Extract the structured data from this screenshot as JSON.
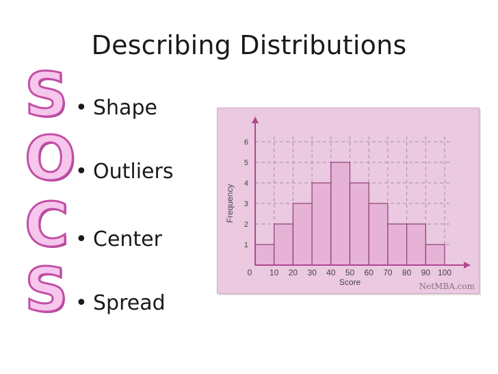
{
  "slide": {
    "title": "Describing Distributions",
    "socs_letters": [
      "S",
      "O",
      "C",
      "S"
    ],
    "bullets": [
      {
        "glyph": "•",
        "text": "Shape"
      },
      {
        "glyph": "•",
        "text": "Outliers"
      },
      {
        "glyph": "•",
        "text": "Center"
      },
      {
        "glyph": "•",
        "text": "Spread"
      }
    ],
    "colors": {
      "socs_fill": "#f7c6ec",
      "socs_outline": "#c24fa6",
      "chart_bg": "#ebc9e0",
      "bar_fill": "#e6b3d7",
      "bar_stroke": "#8a3d73",
      "axis": "#b0488f"
    }
  },
  "chart_data": {
    "type": "bar",
    "title": "",
    "xlabel": "Score",
    "ylabel": "Frequency",
    "x_ticks": [
      0,
      10,
      20,
      30,
      40,
      50,
      60,
      70,
      80,
      90,
      100
    ],
    "y_ticks": [
      1,
      2,
      3,
      4,
      5,
      6
    ],
    "bins": [
      [
        0,
        10
      ],
      [
        10,
        20
      ],
      [
        20,
        30
      ],
      [
        30,
        40
      ],
      [
        40,
        50
      ],
      [
        50,
        60
      ],
      [
        60,
        70
      ],
      [
        70,
        80
      ],
      [
        80,
        90
      ],
      [
        90,
        100
      ]
    ],
    "values": [
      1,
      2,
      3,
      4,
      5,
      4,
      3,
      2,
      2,
      1
    ],
    "xlim": [
      0,
      100
    ],
    "ylim": [
      0,
      6
    ],
    "grid": true,
    "watermark": "NetMBA.com"
  }
}
